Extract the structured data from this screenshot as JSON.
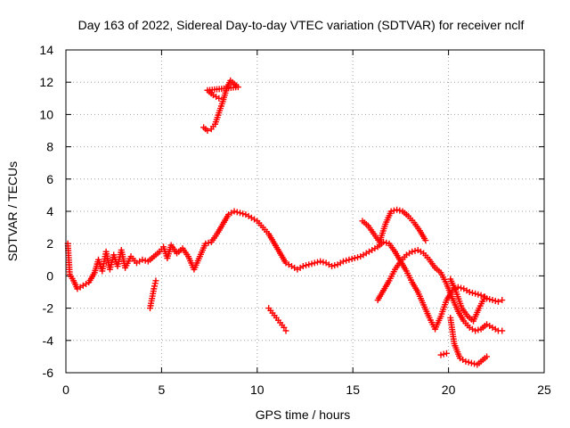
{
  "chart_data": {
    "type": "scatter",
    "title": "Day 163 of 2022, Sidereal Day-to-day VTEC variation (SDTVAR) for receiver nclf",
    "xlabel": "GPS time / hours",
    "ylabel": "SDTVAR / TECUs",
    "xlim": [
      0,
      25
    ],
    "ylim": [
      -6,
      14
    ],
    "xticks": [
      0,
      5,
      10,
      15,
      20,
      25
    ],
    "yticks": [
      -6,
      -4,
      -2,
      0,
      2,
      4,
      6,
      8,
      10,
      12,
      14
    ],
    "grid": true,
    "marker": "+",
    "series": [
      {
        "name": "main-trace",
        "color": "#ff0000",
        "points": [
          [
            0.1,
            2.0
          ],
          [
            0.2,
            0.1
          ],
          [
            0.4,
            -0.3
          ],
          [
            0.6,
            -0.8
          ],
          [
            0.9,
            -0.6
          ],
          [
            1.2,
            -0.4
          ],
          [
            1.5,
            0.2
          ],
          [
            1.7,
            1.0
          ],
          [
            1.9,
            0.3
          ],
          [
            2.1,
            1.5
          ],
          [
            2.3,
            0.4
          ],
          [
            2.5,
            1.3
          ],
          [
            2.7,
            0.6
          ],
          [
            2.9,
            1.6
          ],
          [
            3.1,
            0.5
          ],
          [
            3.4,
            1.2
          ],
          [
            3.7,
            0.8
          ],
          [
            4.0,
            1.0
          ],
          [
            4.3,
            0.9
          ],
          [
            4.6,
            1.2
          ],
          [
            4.9,
            1.5
          ],
          [
            5.1,
            1.8
          ],
          [
            5.3,
            1.1
          ],
          [
            5.5,
            1.9
          ],
          [
            5.8,
            1.4
          ],
          [
            6.1,
            1.7
          ],
          [
            6.4,
            1.2
          ],
          [
            6.7,
            0.4
          ],
          [
            7.0,
            1.2
          ],
          [
            7.3,
            2.0
          ],
          [
            7.6,
            2.1
          ],
          [
            7.9,
            2.6
          ],
          [
            8.2,
            3.2
          ],
          [
            8.5,
            3.8
          ],
          [
            8.8,
            4.0
          ],
          [
            9.1,
            3.9
          ],
          [
            9.4,
            3.8
          ],
          [
            9.7,
            3.6
          ],
          [
            10.0,
            3.4
          ],
          [
            10.3,
            3.0
          ],
          [
            10.6,
            2.6
          ],
          [
            10.9,
            2.0
          ],
          [
            11.2,
            1.4
          ],
          [
            11.5,
            0.8
          ],
          [
            11.8,
            0.6
          ],
          [
            12.1,
            0.4
          ],
          [
            12.4,
            0.6
          ],
          [
            12.7,
            0.7
          ],
          [
            13.0,
            0.8
          ],
          [
            13.3,
            0.9
          ],
          [
            13.6,
            0.8
          ],
          [
            13.9,
            0.6
          ],
          [
            14.2,
            0.7
          ],
          [
            14.5,
            0.9
          ],
          [
            14.8,
            1.0
          ],
          [
            15.1,
            1.1
          ],
          [
            15.4,
            1.2
          ],
          [
            15.7,
            1.4
          ],
          [
            16.0,
            1.6
          ],
          [
            16.3,
            1.8
          ],
          [
            16.6,
            2.1
          ],
          [
            16.9,
            2.0
          ],
          [
            17.2,
            1.5
          ],
          [
            17.5,
            0.9
          ],
          [
            17.8,
            0.3
          ],
          [
            18.1,
            -0.4
          ],
          [
            18.4,
            -1.0
          ],
          [
            18.7,
            -1.8
          ],
          [
            19.0,
            -2.6
          ],
          [
            19.3,
            -3.3
          ],
          [
            19.6,
            -2.5
          ],
          [
            19.9,
            -1.5
          ],
          [
            20.2,
            -0.9
          ],
          [
            20.5,
            -0.7
          ],
          [
            20.8,
            -0.8
          ],
          [
            21.1,
            -1.0
          ],
          [
            21.4,
            -1.1
          ],
          [
            21.7,
            -1.2
          ],
          [
            22.0,
            -1.4
          ],
          [
            22.3,
            -1.5
          ],
          [
            22.6,
            -1.6
          ],
          [
            22.8,
            -1.5
          ]
        ]
      },
      {
        "name": "high-arc",
        "color": "#ff0000",
        "points": [
          [
            7.2,
            9.2
          ],
          [
            7.4,
            9.0
          ],
          [
            7.6,
            9.1
          ],
          [
            7.8,
            9.4
          ],
          [
            8.0,
            10.1
          ],
          [
            8.2,
            10.8
          ],
          [
            8.4,
            11.6
          ],
          [
            8.6,
            12.1
          ],
          [
            8.8,
            11.9
          ],
          [
            9.0,
            11.7
          ],
          [
            7.4,
            11.5
          ],
          [
            7.7,
            11.2
          ],
          [
            8.0,
            11.0
          ]
        ]
      },
      {
        "name": "lower-arc-1",
        "color": "#ff0000",
        "points": [
          [
            4.4,
            -2.0
          ],
          [
            4.5,
            -1.4
          ],
          [
            4.6,
            -0.8
          ],
          [
            4.7,
            -0.3
          ]
        ]
      },
      {
        "name": "lower-arc-2",
        "color": "#ff0000",
        "points": [
          [
            10.6,
            -2.0
          ],
          [
            10.8,
            -2.3
          ],
          [
            11.0,
            -2.6
          ],
          [
            11.2,
            -2.9
          ],
          [
            11.4,
            -3.2
          ],
          [
            11.5,
            -3.4
          ]
        ]
      },
      {
        "name": "late-arc-a",
        "color": "#ff0000",
        "points": [
          [
            15.5,
            3.4
          ],
          [
            15.8,
            3.1
          ],
          [
            16.1,
            2.6
          ],
          [
            16.4,
            2.1
          ],
          [
            16.7,
            3.2
          ],
          [
            17.0,
            4.0
          ],
          [
            17.3,
            4.1
          ],
          [
            17.6,
            4.0
          ],
          [
            17.9,
            3.7
          ],
          [
            18.2,
            3.3
          ],
          [
            18.5,
            2.8
          ],
          [
            18.8,
            2.2
          ]
        ]
      },
      {
        "name": "late-arc-b",
        "color": "#ff0000",
        "points": [
          [
            16.3,
            -1.5
          ],
          [
            16.6,
            -0.9
          ],
          [
            16.9,
            -0.3
          ],
          [
            17.2,
            0.4
          ],
          [
            17.5,
            0.9
          ],
          [
            17.8,
            1.3
          ],
          [
            18.1,
            1.5
          ],
          [
            18.4,
            1.6
          ],
          [
            18.7,
            1.4
          ],
          [
            19.0,
            1.0
          ],
          [
            19.3,
            0.5
          ],
          [
            19.6,
            0.2
          ],
          [
            19.9,
            -0.5
          ],
          [
            20.2,
            -1.4
          ],
          [
            20.5,
            -2.2
          ],
          [
            20.8,
            -2.8
          ],
          [
            21.1,
            -3.2
          ],
          [
            21.4,
            -3.4
          ],
          [
            21.7,
            -3.3
          ],
          [
            22.0,
            -3.0
          ],
          [
            22.3,
            -3.2
          ],
          [
            22.6,
            -3.4
          ],
          [
            22.8,
            -3.4
          ]
        ]
      },
      {
        "name": "late-arc-c",
        "color": "#ff0000",
        "points": [
          [
            19.6,
            -4.9
          ],
          [
            19.9,
            -4.8
          ],
          [
            20.1,
            -2.6
          ],
          [
            20.3,
            -4.2
          ],
          [
            20.6,
            -5.1
          ],
          [
            20.9,
            -5.3
          ],
          [
            21.2,
            -5.4
          ],
          [
            21.5,
            -5.5
          ],
          [
            21.8,
            -5.2
          ],
          [
            22.0,
            -5.0
          ],
          [
            20.1,
            -0.2
          ],
          [
            20.4,
            -1.0
          ],
          [
            20.7,
            -2.0
          ],
          [
            21.0,
            -2.5
          ],
          [
            21.3,
            -2.8
          ],
          [
            21.6,
            -2.0
          ],
          [
            21.9,
            -1.3
          ]
        ]
      }
    ]
  }
}
